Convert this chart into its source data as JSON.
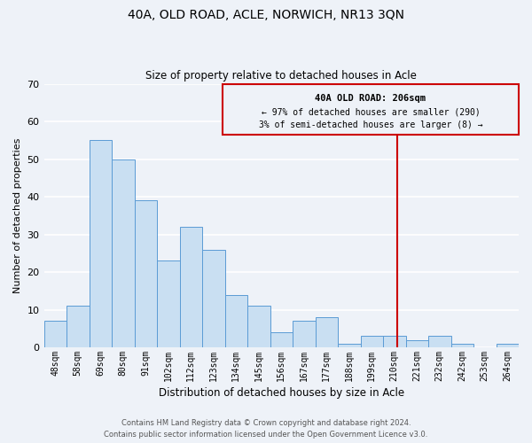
{
  "title": "40A, OLD ROAD, ACLE, NORWICH, NR13 3QN",
  "subtitle": "Size of property relative to detached houses in Acle",
  "xlabel": "Distribution of detached houses by size in Acle",
  "ylabel": "Number of detached properties",
  "bar_labels": [
    "48sqm",
    "58sqm",
    "69sqm",
    "80sqm",
    "91sqm",
    "102sqm",
    "112sqm",
    "123sqm",
    "134sqm",
    "145sqm",
    "156sqm",
    "167sqm",
    "177sqm",
    "188sqm",
    "199sqm",
    "210sqm",
    "221sqm",
    "232sqm",
    "242sqm",
    "253sqm",
    "264sqm"
  ],
  "bar_heights": [
    7,
    11,
    55,
    50,
    39,
    23,
    32,
    26,
    14,
    11,
    4,
    7,
    8,
    1,
    3,
    3,
    2,
    3,
    1,
    0,
    1
  ],
  "bar_color": "#c9dff2",
  "bar_edge_color": "#5b9bd5",
  "ylim": [
    0,
    70
  ],
  "yticks": [
    0,
    10,
    20,
    30,
    40,
    50,
    60,
    70
  ],
  "vline_color": "#cc0000",
  "annotation_title": "40A OLD ROAD: 206sqm",
  "annotation_line1": "← 97% of detached houses are smaller (290)",
  "annotation_line2": "3% of semi-detached houses are larger (8) →",
  "annotation_box_color": "#cc0000",
  "background_color": "#eef2f8",
  "grid_color": "#ffffff",
  "footer_line1": "Contains HM Land Registry data © Crown copyright and database right 2024.",
  "footer_line2": "Contains public sector information licensed under the Open Government Licence v3.0."
}
